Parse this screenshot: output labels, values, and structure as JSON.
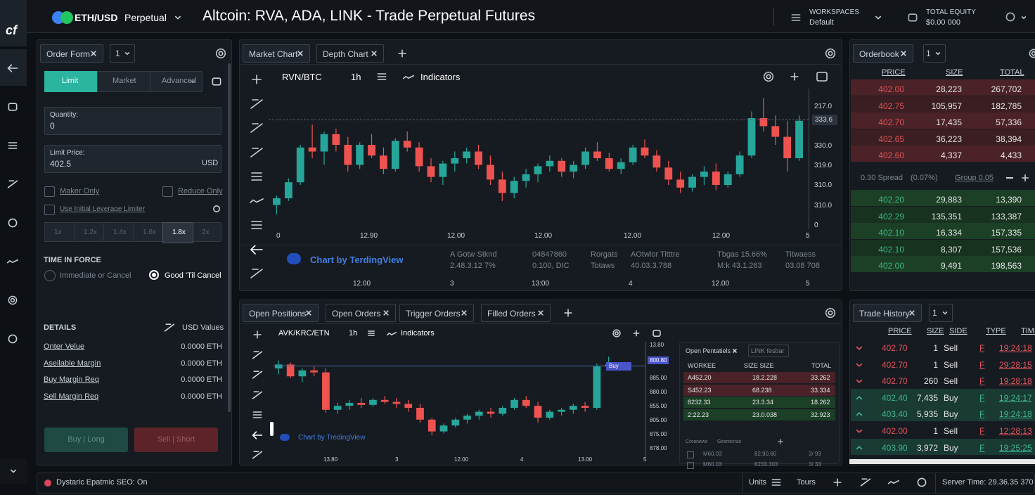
{
  "header": {
    "logo": "cf",
    "pair": "ETH/USD",
    "market": "Perpetual",
    "title": "Altcoin: RVA, ADA, LINK - Trade Perpetual Futures",
    "workspaces_label": "WORKSPACES",
    "workspace": "Default",
    "equity_label": "TOTAL EQUITY",
    "equity": "$0.00 000"
  },
  "order_form": {
    "tab": "Order Form",
    "tab_count": "1",
    "order_types": [
      "Limit",
      "Market",
      "Advanced"
    ],
    "quantity_label": "Quantity:",
    "quantity": "0",
    "price_label": "Limit Price:",
    "price": "402.5",
    "price_unit": "USD",
    "maker_only": "Maker Only",
    "reduce_only": "Reduce Only",
    "leverage_limiter": "Use Initial Leverage Limiter",
    "leverage": [
      "1x",
      "1.2x",
      "1.4x",
      "1.6x",
      "1.8x",
      "2x"
    ],
    "tif_label": "TIME IN FORCE",
    "tif_options": [
      "Immediate or Cancel",
      "Good 'Til Cancel"
    ],
    "details_label": "DETAILS",
    "details_toggle": "USD Values",
    "details": [
      {
        "label": "Onter Velue",
        "value": "0.0000 ETH"
      },
      {
        "label": "Aseilable Margin",
        "value": "0.0000 ETH"
      },
      {
        "label": "Buy Margin Req",
        "value": "0.0000 ETH"
      },
      {
        "label": "Sell Margin Req",
        "value": "0.0000 ETH"
      }
    ],
    "buy": "Buy | Long",
    "sell": "Sell | Short"
  },
  "market_chart": {
    "tabs": [
      "Market Chart",
      "Depth Chart"
    ],
    "symbol": "RVN/BTC",
    "interval": "1h",
    "indicators": "Indicators",
    "price_ticks": [
      "217.0",
      "330.0",
      "319.0",
      "310.0",
      "310.0",
      "0"
    ],
    "last_price": "333.6",
    "time_ticks": [
      "0",
      "12.90",
      "12.00",
      "12.00",
      "12.00",
      "12.00",
      "5"
    ],
    "watermark": "Chart by TerdingView",
    "stats": [
      [
        "A Gotw Stknd",
        "2.48.3.12 7%"
      ],
      [
        "04847860",
        "0.100, DIC"
      ],
      [
        "Rorgats",
        "Totaws"
      ],
      [
        "AOtwlor Titttre",
        "40.03.3.788"
      ],
      [
        "Tbgas 15.66%",
        "M:k 43.1.263"
      ],
      [
        "Titwaess",
        "03.08 708"
      ]
    ],
    "lower_ticks": [
      "12.00",
      "3",
      "13:00",
      "4",
      "12.00",
      "5"
    ],
    "ylim": [
      0,
      100
    ],
    "candles": [
      [
        15,
        22,
        8,
        20
      ],
      [
        20,
        35,
        18,
        32
      ],
      [
        32,
        60,
        30,
        58
      ],
      [
        58,
        75,
        50,
        55
      ],
      [
        55,
        70,
        45,
        68
      ],
      [
        68,
        72,
        55,
        60
      ],
      [
        60,
        66,
        40,
        45
      ],
      [
        45,
        62,
        42,
        60
      ],
      [
        60,
        68,
        50,
        52
      ],
      [
        52,
        58,
        38,
        42
      ],
      [
        42,
        65,
        40,
        63
      ],
      [
        63,
        70,
        55,
        58
      ],
      [
        58,
        62,
        40,
        44
      ],
      [
        44,
        50,
        32,
        36
      ],
      [
        36,
        48,
        30,
        46
      ],
      [
        46,
        55,
        40,
        50
      ],
      [
        50,
        58,
        46,
        55
      ],
      [
        55,
        60,
        42,
        45
      ],
      [
        45,
        52,
        30,
        34
      ],
      [
        34,
        40,
        18,
        24
      ],
      [
        24,
        36,
        20,
        33
      ],
      [
        33,
        42,
        28,
        38
      ],
      [
        38,
        46,
        32,
        44
      ],
      [
        44,
        52,
        40,
        48
      ],
      [
        48,
        50,
        36,
        40
      ],
      [
        40,
        48,
        35,
        45
      ],
      [
        45,
        58,
        42,
        55
      ],
      [
        55,
        62,
        48,
        50
      ],
      [
        50,
        54,
        40,
        42
      ],
      [
        42,
        50,
        38,
        47
      ],
      [
        47,
        60,
        45,
        58
      ],
      [
        58,
        64,
        50,
        52
      ],
      [
        52,
        56,
        40,
        43
      ],
      [
        43,
        48,
        30,
        34
      ],
      [
        34,
        40,
        24,
        28
      ],
      [
        28,
        38,
        25,
        36
      ],
      [
        36,
        44,
        30,
        40
      ],
      [
        40,
        46,
        26,
        30
      ],
      [
        30,
        40,
        28,
        38
      ],
      [
        38,
        55,
        36,
        52
      ],
      [
        52,
        85,
        50,
        80
      ],
      [
        80,
        95,
        70,
        74
      ],
      [
        74,
        82,
        60,
        66
      ],
      [
        66,
        78,
        40,
        50
      ],
      [
        50,
        82,
        48,
        78
      ]
    ]
  },
  "orderbook": {
    "tab": "Orderbook",
    "tab_count": "1",
    "columns": [
      "PRICE",
      "SIZE",
      "TOTAL"
    ],
    "asks": [
      [
        "402.00",
        "28,223",
        "267,702"
      ],
      [
        "402.75",
        "105,957",
        "182,785"
      ],
      [
        "402.70",
        "17,435",
        "57,336"
      ],
      [
        "402.65",
        "36,223",
        "38,394"
      ],
      [
        "402.60",
        "4,337",
        "4,433"
      ]
    ],
    "spread": "0.30 Spread",
    "spread_pct": "(0.07%)",
    "group": "Group 0.05",
    "bids": [
      [
        "402.20",
        "29,883",
        "13,390"
      ],
      [
        "402.29",
        "135,351",
        "133,387"
      ],
      [
        "402.10",
        "16,334",
        "157,335"
      ],
      [
        "402.10",
        "8,307",
        "157,536"
      ],
      [
        "402.00",
        "9,491",
        "198,563"
      ]
    ]
  },
  "positions": {
    "tabs": [
      "Open Positions",
      "Open Orders",
      "Trigger Orders",
      "Filled Orders"
    ],
    "symbol": "AVK/KRC/ETN",
    "interval": "1h",
    "indicators": "Indicators",
    "price_ticks": [
      "13.80",
      "885.00",
      "880.00",
      "855.00",
      "805.00",
      "875.00",
      "878.00"
    ],
    "last_price": "800.80",
    "marker": "Buy",
    "time_ticks": [
      "13.80",
      "3",
      "12.00",
      "4",
      "13.00",
      "5"
    ],
    "watermark": "Chart by TredingView",
    "ylim": [
      0,
      100
    ],
    "candles": [
      [
        80,
        88,
        74,
        84
      ],
      [
        84,
        86,
        70,
        72
      ],
      [
        72,
        80,
        66,
        78
      ],
      [
        78,
        82,
        72,
        76
      ],
      [
        76,
        80,
        35,
        38
      ],
      [
        38,
        45,
        34,
        42
      ],
      [
        42,
        48,
        38,
        45
      ],
      [
        45,
        50,
        40,
        43
      ],
      [
        43,
        50,
        41,
        48
      ],
      [
        48,
        52,
        44,
        46
      ],
      [
        46,
        50,
        40,
        44
      ],
      [
        44,
        48,
        36,
        40
      ],
      [
        40,
        44,
        25,
        28
      ],
      [
        28,
        30,
        12,
        16
      ],
      [
        16,
        24,
        14,
        22
      ],
      [
        22,
        30,
        20,
        28
      ],
      [
        28,
        34,
        24,
        32
      ],
      [
        32,
        38,
        28,
        36
      ],
      [
        36,
        40,
        30,
        34
      ],
      [
        34,
        42,
        32,
        40
      ],
      [
        40,
        50,
        38,
        48
      ],
      [
        48,
        52,
        40,
        42
      ],
      [
        42,
        46,
        25,
        30
      ],
      [
        30,
        38,
        28,
        36
      ],
      [
        36,
        40,
        32,
        38
      ],
      [
        38,
        44,
        34,
        42
      ],
      [
        42,
        46,
        36,
        40
      ],
      [
        40,
        85,
        38,
        82
      ],
      [
        82,
        92,
        78,
        84
      ]
    ],
    "inset": {
      "tabs": [
        "Open Pentatiels",
        "LINK fesbar"
      ],
      "columns": [
        "WORKEE",
        "SIZE SIZE",
        "TOTAL"
      ],
      "rows": [
        [
          "A452.20",
          "18.2.228",
          "33.262"
        ],
        [
          "S452.23",
          "68.238",
          "33.334"
        ],
        [
          "8232.33",
          "23.3.34",
          "18.262"
        ],
        [
          "2:22.23",
          "23.0.038",
          "32.923"
        ]
      ],
      "footer_tabs": [
        "Coranews",
        "Gesrtesras"
      ],
      "footer_rows": [
        [
          "M60.03",
          "82.90.60",
          "3/ 93"
        ],
        [
          "M60.03",
          "8233.303",
          "3/ 33"
        ]
      ]
    }
  },
  "trade_history": {
    "tab": "Trade History",
    "tab_count": "1",
    "columns": [
      "PRICE",
      "SIZE",
      "SIDE",
      "TYPE",
      "TIME"
    ],
    "rows": [
      [
        "402.70",
        "1",
        "Sell",
        "F",
        "19:24:18"
      ],
      [
        "402.70",
        "1",
        "Sell",
        "F",
        "29:28:15"
      ],
      [
        "402.70",
        "260",
        "Sell",
        "F",
        "19:28:18"
      ],
      [
        "402.40",
        "7,435",
        "Buy",
        "F",
        "19:24:17"
      ],
      [
        "403.40",
        "5,935",
        "Buy",
        "F",
        "19:24:18"
      ],
      [
        "402.00",
        "1",
        "Sell",
        "F",
        "12:28:13"
      ],
      [
        "403.90",
        "3,972",
        "Buy",
        "F",
        "19:25:25"
      ]
    ]
  },
  "status_bar": {
    "status": "Dystaric Epatmic SEO: On",
    "units": "Units",
    "tours": "Tours",
    "server_time": "Server Time: 29.36.35 370"
  }
}
